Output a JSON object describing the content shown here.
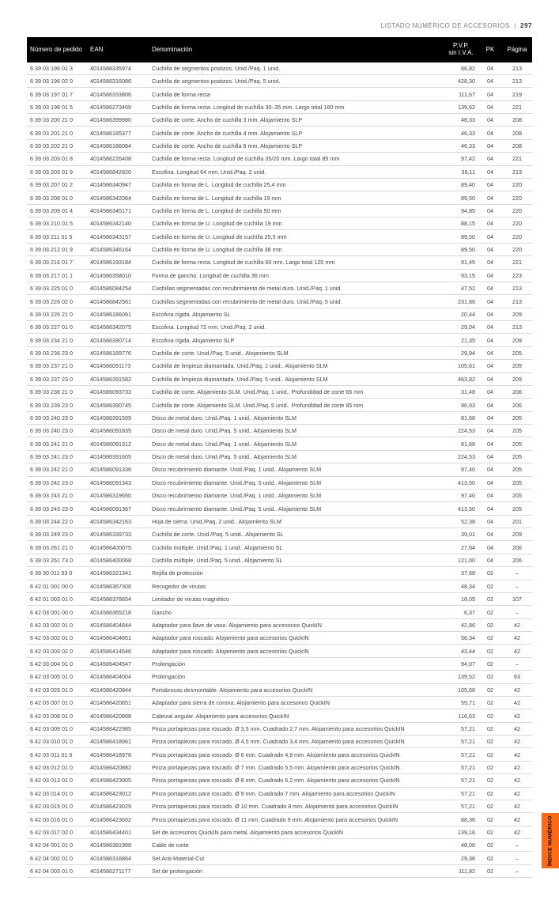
{
  "header": {
    "section_title": "LISTADO NUMÉRICO DE ACCESORIOS",
    "page_number": "297"
  },
  "columns": {
    "order": "Número de pedido",
    "ean": "EAN",
    "desc": "Denominación",
    "pvp_line1": "P.V.P.",
    "pvp_line2": "sin I.V.A.",
    "pk": "PK",
    "page": "Página"
  },
  "rows": [
    {
      "o": "6 39 03 196 01 3",
      "e": "4014586335974",
      "d": "Cuchilla de segmentos postizos. Unid./Paq. 1 unid.",
      "p": "86,82",
      "k": "04",
      "g": "213"
    },
    {
      "o": "6 39 03 196 02 0",
      "e": "4014586316086",
      "d": "Cuchilla de segmentos postizos. Unid./Paq. 5 unid.",
      "p": "428,30",
      "k": "04",
      "g": "213"
    },
    {
      "o": "6 39 03 197 01 7",
      "e": "4014586333806",
      "d": "Cuchilla de forma recta",
      "p": "111,67",
      "k": "04",
      "g": "219"
    },
    {
      "o": "6 39 03 198 01 5",
      "e": "4014586273469",
      "d": "Cuchilla de forma recta. Longitud de cuchilla 30–35 mm. Largo total 160 mm",
      "p": "139,62",
      "k": "04",
      "g": "221"
    },
    {
      "o": "6 39 03 200 21 0",
      "e": "4014586399980",
      "d": "Cuchilla de corte. Ancho de cuchilla 3 mm. Alojamiento SLP",
      "p": "46,33",
      "k": "04",
      "g": "208"
    },
    {
      "o": "6 39 03 201 21 0",
      "e": "4014586185377",
      "d": "Cuchilla de corte. Ancho de cuchilla 4 mm. Alojamiento SLP",
      "p": "46,33",
      "k": "04",
      "g": "208"
    },
    {
      "o": "6 39 03 202 21 0",
      "e": "4014586186084",
      "d": "Cuchilla de corte. Ancho de cuchilla 6 mm. Alojamiento SLP",
      "p": "46,33",
      "k": "04",
      "g": "208"
    },
    {
      "o": "6 39 03 203 01 8",
      "e": "4014586226408",
      "d": "Cuchilla de forma recta. Longitud de cuchilla 35/20 mm. Largo total 85 mm",
      "p": "97,42",
      "k": "04",
      "g": "221"
    },
    {
      "o": "6 39 03 203 01 9",
      "e": "4014586842820",
      "d": "Escofina. Longitud 64 mm. Unid./Paq. 2 unid.",
      "p": "39,11",
      "k": "04",
      "g": "213"
    },
    {
      "o": "6 39 03 207 01 2",
      "e": "4014586340947",
      "d": "Cuchilla en forma de L. Longitud de cuchilla 25,4 mm",
      "p": "89,40",
      "k": "04",
      "g": "220"
    },
    {
      "o": "6 39 03 208 01 0",
      "e": "4014586342064",
      "d": "Cuchilla en forma de L. Longitud de cuchilla 19 mm",
      "p": "89,50",
      "k": "04",
      "g": "220"
    },
    {
      "o": "6 39 03 209 01 4",
      "e": "4014586345171",
      "d": "Cuchilla en forma de L. Longitud de cuchilla 50 mm",
      "p": "94,85",
      "k": "04",
      "g": "220"
    },
    {
      "o": "6 39 03 210 01 5",
      "e": "4014586342140",
      "d": "Cuchilla en forma de U. Longitud de cuchilla 19 mm",
      "p": "88,15",
      "k": "04",
      "g": "220"
    },
    {
      "o": "6 39 03 211 01 5",
      "e": "4014586343157",
      "d": "Cuchilla en forma de U. Longitud de cuchilla 25,5 mm",
      "p": "89,50",
      "k": "04",
      "g": "220"
    },
    {
      "o": "6 39 03 212 01 9",
      "e": "4014586346164",
      "d": "Cuchilla en forma de U. Longitud de cuchilla 38 mm",
      "p": "89,50",
      "k": "04",
      "g": "220"
    },
    {
      "o": "6 39 03 216 01 7",
      "e": "4014586193184",
      "d": "Cuchilla de forma recta. Longitud de cuchilla 60 mm. Largo total 120 mm",
      "p": "91,45",
      "k": "04",
      "g": "221"
    },
    {
      "o": "6 39 03 217 01 1",
      "e": "4014586358010",
      "d": "Forma de gancho. Longitud de cuchilla 36 mm",
      "p": "93,15",
      "k": "04",
      "g": "223"
    },
    {
      "o": "6 39 03 225 01 0",
      "e": "4014586084254",
      "d": "Cuchillas segmentadas con recubrimiento de metal duro. Unid./Paq. 1 unid.",
      "p": "47,52",
      "k": "04",
      "g": "213"
    },
    {
      "o": "6 39 03 226 02 0",
      "e": "4014586842561",
      "d": "Cuchillas segmentadas con recubrimiento de metal duro. Unid./Paq. 5 unid.",
      "p": "231,86",
      "k": "04",
      "g": "213"
    },
    {
      "o": "6 39 03 226 21 0",
      "e": "4014586186091",
      "d": "Escofina rígida. Alojamiento SL",
      "p": "20,44",
      "k": "04",
      "g": "209"
    },
    {
      "o": "6 39 03 227 01 0",
      "e": "4014586342075",
      "d": "Escofina. Longitud 72 mm. Unid./Paq. 2 unid.",
      "p": "29,04",
      "k": "04",
      "g": "213"
    },
    {
      "o": "6 39 03 234 21 0",
      "e": "4014586390714",
      "d": "Escofina rígida. Alojamiento SLP",
      "p": "21,35",
      "k": "04",
      "g": "209"
    },
    {
      "o": "6 39 03 236 23 0",
      "e": "4014586189776",
      "d": "Cuchilla de corte. Unid./Paq. 5 unid.. Alojamiento SLM",
      "p": "29,94",
      "k": "04",
      "g": "205"
    },
    {
      "o": "6 39 03 237 21 0",
      "e": "4014586091173",
      "d": "Cuchilla de limpieza diamantada. Unid./Paq. 1 unid.. Alojamiento SLM",
      "p": "105,61",
      "k": "04",
      "g": "209"
    },
    {
      "o": "6 39 03 237 23 0",
      "e": "4014586391582",
      "d": "Cuchilla de limpieza diamantada. Unid./Paq. 5 unid.. Alojamiento SLM",
      "p": "463,82",
      "k": "04",
      "g": "209"
    },
    {
      "o": "6 39 03 238 21 0",
      "e": "4014586093733",
      "d": "Cuchilla de corte. Alojamiento SLM. Unid./Paq. 1 unid.. Profundidad de corte 65 mm",
      "p": "31,48",
      "k": "04",
      "g": "206"
    },
    {
      "o": "6 39 03 239 23 0",
      "e": "4014586390745",
      "d": "Cuchilla de corte. Alojamiento SLM. Unid./Paq. 5 unid.. Profundidad de corte 85 mm",
      "p": "96,93",
      "k": "04",
      "g": "206"
    },
    {
      "o": "6 39 03 240 23 0",
      "e": "4014586391599",
      "d": "Disco de metal duro. Unid./Paq. 1 unid.. Alojamiento SLM",
      "p": "81,68",
      "k": "04",
      "g": "205"
    },
    {
      "o": "6 39 03 240 23 0",
      "e": "4014586091835",
      "d": "Disco de metal duro. Unid./Paq. 5 unid.. Alojamiento SLM",
      "p": "224,53",
      "k": "04",
      "g": "205"
    },
    {
      "o": "6 39 03 241 21 0",
      "e": "4014586091312",
      "d": "Disco de metal duro. Unid./Paq. 1 unid.. Alojamiento SLM",
      "p": "81,68",
      "k": "04",
      "g": "205"
    },
    {
      "o": "6 39 03 241 23 0",
      "e": "4014586391605",
      "d": "Disco de metal duro. Unid./Paq. 5 unid.. Alojamiento SLM",
      "p": "224,53",
      "k": "04",
      "g": "205"
    },
    {
      "o": "6 39 03 242 21 0",
      "e": "4014586091336",
      "d": "Disco recubrimiento diamante. Unid./Paq. 1 unid.. Alojamiento SLM",
      "p": "97,40",
      "k": "04",
      "g": "205"
    },
    {
      "o": "6 39 03 242 23 0",
      "e": "4014586091343",
      "d": "Disco recubrimiento diamante. Unid./Paq. 5 unid.. Alojamiento SLM",
      "p": "413,50",
      "k": "04",
      "g": "205"
    },
    {
      "o": "6 39 03 243 21 0",
      "e": "4014586319650",
      "d": "Disco recubrimiento diamante. Unid./Paq. 1 unid.. Alojamiento SLM",
      "p": "97,40",
      "k": "04",
      "g": "205"
    },
    {
      "o": "6 39 03 243 23 0",
      "e": "4014586091367",
      "d": "Disco recubrimiento diamante. Unid./Paq. 5 unid.. Alojamiento SLM",
      "p": "413,50",
      "k": "04",
      "g": "205"
    },
    {
      "o": "6 39 03 244 22 0",
      "e": "4014586342163",
      "d": "Hoja de sierra. Unid./Paq. 2 unid.. Alojamiento SLM",
      "p": "52,38",
      "k": "04",
      "g": "201"
    },
    {
      "o": "6 39 03 249 23 0",
      "e": "4014586339733",
      "d": "Cuchilla de corte. Unid./Paq. 5 unid.. Alojamiento SL",
      "p": "39,01",
      "k": "04",
      "g": "209"
    },
    {
      "o": "6 39 03 261 21 0",
      "e": "4014586400075",
      "d": "Cuchilla múltiple. Unid./Paq. 1 unid.. Alojamiento SL",
      "p": "27,64",
      "k": "04",
      "g": "206"
    },
    {
      "o": "6 39 03 261 73 0",
      "e": "4014586400068",
      "d": "Cuchilla múltiple. Unid./Paq. 5 unid.. Alojamiento SL",
      "p": "121,00",
      "k": "04",
      "g": "206"
    },
    {
      "o": "6 39 30 011 03 0",
      "e": "4014586321341",
      "d": "Rejilla de protección",
      "p": "37,68",
      "k": "02",
      "g": "–"
    },
    {
      "o": "6 42 01 001 00 0",
      "e": "4014586367306",
      "d": "Recogedor de virutas",
      "p": "48,34",
      "k": "02",
      "g": "–"
    },
    {
      "o": "6 42 01 003 01 0",
      "e": "4014586378654",
      "d": "Limitador de virutas magnético",
      "p": "18,05",
      "k": "02",
      "g": "107"
    },
    {
      "o": "6 42 03 001 00 0",
      "e": "4014586365218",
      "d": "Gancho",
      "p": "6,37",
      "k": "02",
      "g": "–"
    },
    {
      "o": "6 42 03 002 01 0",
      "e": "4014586404844",
      "d": "Adaptador para llave de vaso. Alojamiento para accesorios QuickIN",
      "p": "42,86",
      "k": "02",
      "g": "42"
    },
    {
      "o": "6 42 03 002 01 0",
      "e": "4014586404851",
      "d": "Adaptador para roscado. Alojamiento para accesorios QuickIN",
      "p": "58,34",
      "k": "02",
      "g": "42"
    },
    {
      "o": "6 42 03 003 02 0",
      "e": "4014586414546",
      "d": "Adaptador para roscado. Alojamiento para accesorios QuickIN",
      "p": "43,44",
      "k": "02",
      "g": "42"
    },
    {
      "o": "6 42 03 004 01 0",
      "e": "4014586404547",
      "d": "Prolongación",
      "p": "94,07",
      "k": "02",
      "g": "–"
    },
    {
      "o": "6 42 03 005 01 0",
      "e": "4014586404004",
      "d": "Prolongación",
      "p": "139,52",
      "k": "02",
      "g": "63"
    },
    {
      "o": "6 42 03 026 01 0",
      "e": "4014586420844",
      "d": "Portabrocas desmontable. Alojamiento para accesorios QuickIN",
      "p": "105,66",
      "k": "02",
      "g": "42"
    },
    {
      "o": "6 42 03 007 01 0",
      "e": "4014586420851",
      "d": "Adaptador para sierra de corona. Alojamiento para accesorios QuickIN",
      "p": "59,71",
      "k": "02",
      "g": "42"
    },
    {
      "o": "6 42 03 008 01 0",
      "e": "4014586420868",
      "d": "Cabezal angular. Alojamiento para accesorios QuickIN",
      "p": "116,63",
      "k": "02",
      "g": "42"
    },
    {
      "o": "6 42 03 009 01 0",
      "e": "4014586422985",
      "d": "Pinza portapiezas para roscado. Ø 3,5 mm. Cuadrado 2,7 mm. Alojamiento para accesorios QuickIN",
      "p": "57,21",
      "k": "02",
      "g": "42"
    },
    {
      "o": "6 42 03 010 01 0",
      "e": "4014586418961",
      "d": "Pinza portapiezas para roscado. Ø 4,5 mm. Cuadrado 3,4 mm. Alojamiento para accesorios QuickIN",
      "p": "57,21",
      "k": "02",
      "g": "42"
    },
    {
      "o": "6 42 03 011 01 0",
      "e": "4014586418978",
      "d": "Pinza portapiezas para roscado. Ø 6 mm. Cuadrado 4,9 mm. Alojamiento para accesorios QuickIN",
      "p": "57,21",
      "k": "02",
      "g": "42"
    },
    {
      "o": "6 42 03 012 01 0",
      "e": "4014586420882",
      "d": "Pinza portapiezas para roscado. Ø 7 mm. Cuadrado 5,5 mm. Alojamiento para accesorios QuickIN",
      "p": "57,21",
      "k": "02",
      "g": "42"
    },
    {
      "o": "6 42 03 013 01 0",
      "e": "4014586423005",
      "d": "Pinza portapiezas para roscado. Ø 8 mm. Cuadrado 6,2 mm. Alojamiento para accesorios QuickIN",
      "p": "57,21",
      "k": "02",
      "g": "42"
    },
    {
      "o": "6 42 03 014 01 0",
      "e": "4014586423012",
      "d": "Pinza portapiezas para roscado. Ø 9 mm. Cuadrado 7 mm. Alojamiento para accesorios QuickIN",
      "p": "57,21",
      "k": "02",
      "g": "42"
    },
    {
      "o": "6 42 03 015 01 0",
      "e": "4014586423029",
      "d": "Pinza portapiezas para roscado. Ø 10 mm. Cuadrado 8 mm. Alojamiento para accesorios QuickIN",
      "p": "57,21",
      "k": "02",
      "g": "42"
    },
    {
      "o": "6 42 03 016 01 0",
      "e": "4014586423602",
      "d": "Pinza portapiezas para roscado. Ø 11 mm. Cuadrado 9 mm. Alojamiento para accesorios QuickIN",
      "p": "88,36",
      "k": "02",
      "g": "42"
    },
    {
      "o": "6 42 03 017 02 0",
      "e": "4014586434401",
      "d": "Set de accesorios QuickIN para metal. Alojamiento para accesorios QuickIN",
      "p": "139,16",
      "k": "02",
      "g": "42"
    },
    {
      "o": "6 42 04 001 01 0",
      "e": "4014586381968",
      "d": "Cable de corte",
      "p": "48,06",
      "k": "02",
      "g": "–"
    },
    {
      "o": "6 42 04 002 01 0",
      "e": "4014586316864",
      "d": "Set Anti-Material-Cut",
      "p": "29,36",
      "k": "02",
      "g": "–"
    },
    {
      "o": "6 42 04 003 01 0",
      "e": "4014586271177",
      "d": "Set de prolongación",
      "p": "111,82",
      "k": "02",
      "g": "–"
    }
  ],
  "side_tab": "ÍNDICE NUMÉRICO",
  "colors": {
    "header_bg": "#000000",
    "header_fg": "#ffffff",
    "row_border": "#d9d9d9",
    "redacted_fg": "#d6d6d6",
    "body_fg": "#444444",
    "accent": "#ff6a13"
  }
}
